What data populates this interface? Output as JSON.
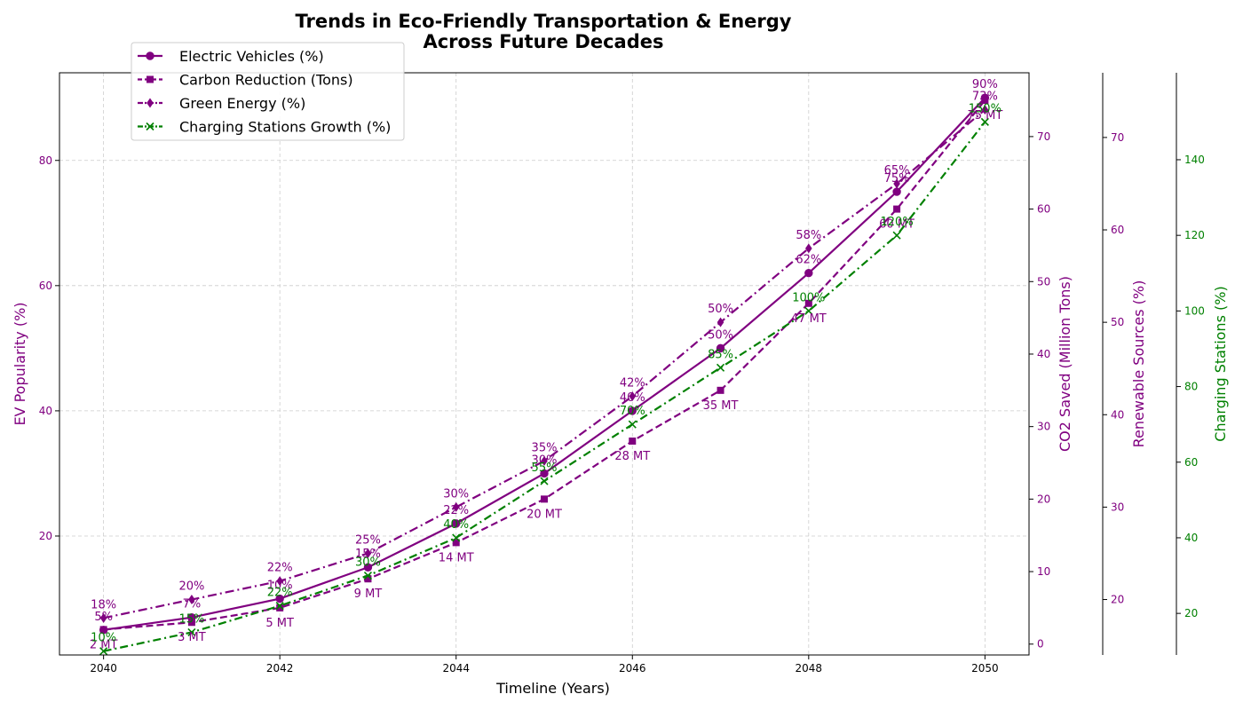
{
  "chart_data": {
    "type": "line",
    "title_line1": "Trends in Eco-Friendly Transportation & Energy",
    "title_line2": "Across Future Decades",
    "xlabel": "Timeline (Years)",
    "x": [
      2040,
      2041,
      2042,
      2043,
      2044,
      2045,
      2046,
      2047,
      2048,
      2049,
      2050
    ],
    "x_ticks": [
      2040,
      2042,
      2044,
      2046,
      2048,
      2050
    ],
    "xlim": [
      2039.5,
      2050.5
    ],
    "grid": true,
    "legend_position": "upper-left",
    "axes": [
      {
        "id": "ev",
        "label": "EV Popularity (%)",
        "color": "#800080",
        "side": "left",
        "ylim": [
          1,
          94
        ],
        "ticks": [
          20,
          40,
          60,
          80
        ]
      },
      {
        "id": "co2",
        "label": "CO2 Saved (Million Tons)",
        "color": "#800080",
        "side": "right",
        "ylim": [
          -1.5,
          78.8
        ],
        "ticks": [
          0,
          10,
          20,
          30,
          40,
          50,
          60,
          70
        ]
      },
      {
        "id": "ren",
        "label": "Renewable Sources (%)",
        "color": "#800080",
        "side": "right",
        "ylim": [
          14,
          77
        ],
        "ticks": [
          20,
          30,
          40,
          50,
          60,
          70
        ]
      },
      {
        "id": "chg",
        "label": "Charging Stations (%)",
        "color": "#008000",
        "side": "right",
        "ylim": [
          9,
          163
        ],
        "ticks": [
          20,
          40,
          60,
          80,
          100,
          120,
          140
        ]
      }
    ],
    "series": [
      {
        "name": "Electric Vehicles (%)",
        "axis": "ev",
        "color": "#800080",
        "dash": "",
        "marker": "circle",
        "values": [
          5,
          7,
          10,
          15,
          22,
          30,
          40,
          50,
          62,
          75,
          90
        ],
        "labels": [
          "5%",
          "7%",
          "10%",
          "15%",
          "22%",
          "30%",
          "40%",
          "50%",
          "62%",
          "75%",
          "90%"
        ],
        "label_pos": "above"
      },
      {
        "name": "Carbon Reduction (Tons)",
        "axis": "co2",
        "color": "#800080",
        "dash": "8,4",
        "marker": "square",
        "values": [
          2,
          3,
          5,
          9,
          14,
          20,
          28,
          35,
          47,
          60,
          75
        ],
        "labels": [
          "2 MT",
          "3 MT",
          "5 MT",
          "9 MT",
          "14 MT",
          "20 MT",
          "28 MT",
          "35 MT",
          "47 MT",
          "60 MT",
          "75 MT"
        ],
        "label_pos": "below"
      },
      {
        "name": "Green Energy (%)",
        "axis": "ren",
        "color": "#800080",
        "dash": "10,4,2,4",
        "marker": "diamond",
        "values": [
          18,
          20,
          22,
          25,
          30,
          35,
          42,
          50,
          58,
          65,
          73
        ],
        "labels": [
          "18%",
          "20%",
          "22%",
          "25%",
          "30%",
          "35%",
          "42%",
          "50%",
          "58%",
          "65%",
          "73%"
        ],
        "label_pos": "above"
      },
      {
        "name": "Charging Stations Growth (%)",
        "axis": "chg",
        "color": "#008000",
        "dash": "9,4,2,4",
        "marker": "x",
        "values": [
          10,
          15,
          22,
          30,
          40,
          55,
          70,
          85,
          100,
          120,
          150
        ],
        "labels": [
          "10%",
          "15%",
          "22%",
          "30%",
          "40%",
          "55%",
          "70%",
          "85%",
          "100%",
          "120%",
          "150%"
        ],
        "label_pos": "above"
      }
    ]
  }
}
